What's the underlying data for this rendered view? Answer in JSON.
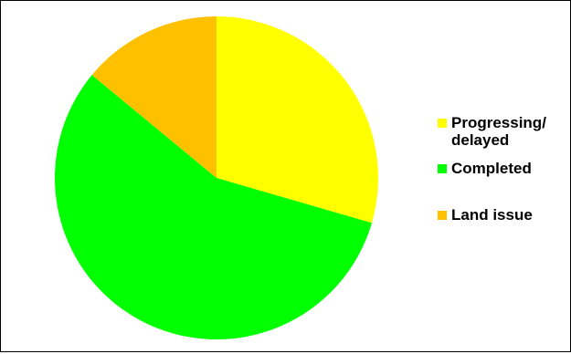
{
  "chart_data": {
    "type": "pie",
    "title": "",
    "categories": [
      "Progressing/\ndelayed",
      "Completed",
      "Land issue"
    ],
    "values": [
      29.5,
      56.5,
      14.0
    ],
    "colors": [
      "#FFFF00",
      "#00FF00",
      "#FFC000"
    ],
    "start_angle_deg": 0,
    "direction": "clockwise",
    "legend": {
      "placement": "right",
      "entries": [
        {
          "label": "Progressing/\ndelayed",
          "color": "#FFFF00"
        },
        {
          "label": "Completed",
          "color": "#00FF00"
        },
        {
          "label": "Land issue",
          "color": "#FFC000"
        }
      ]
    }
  }
}
